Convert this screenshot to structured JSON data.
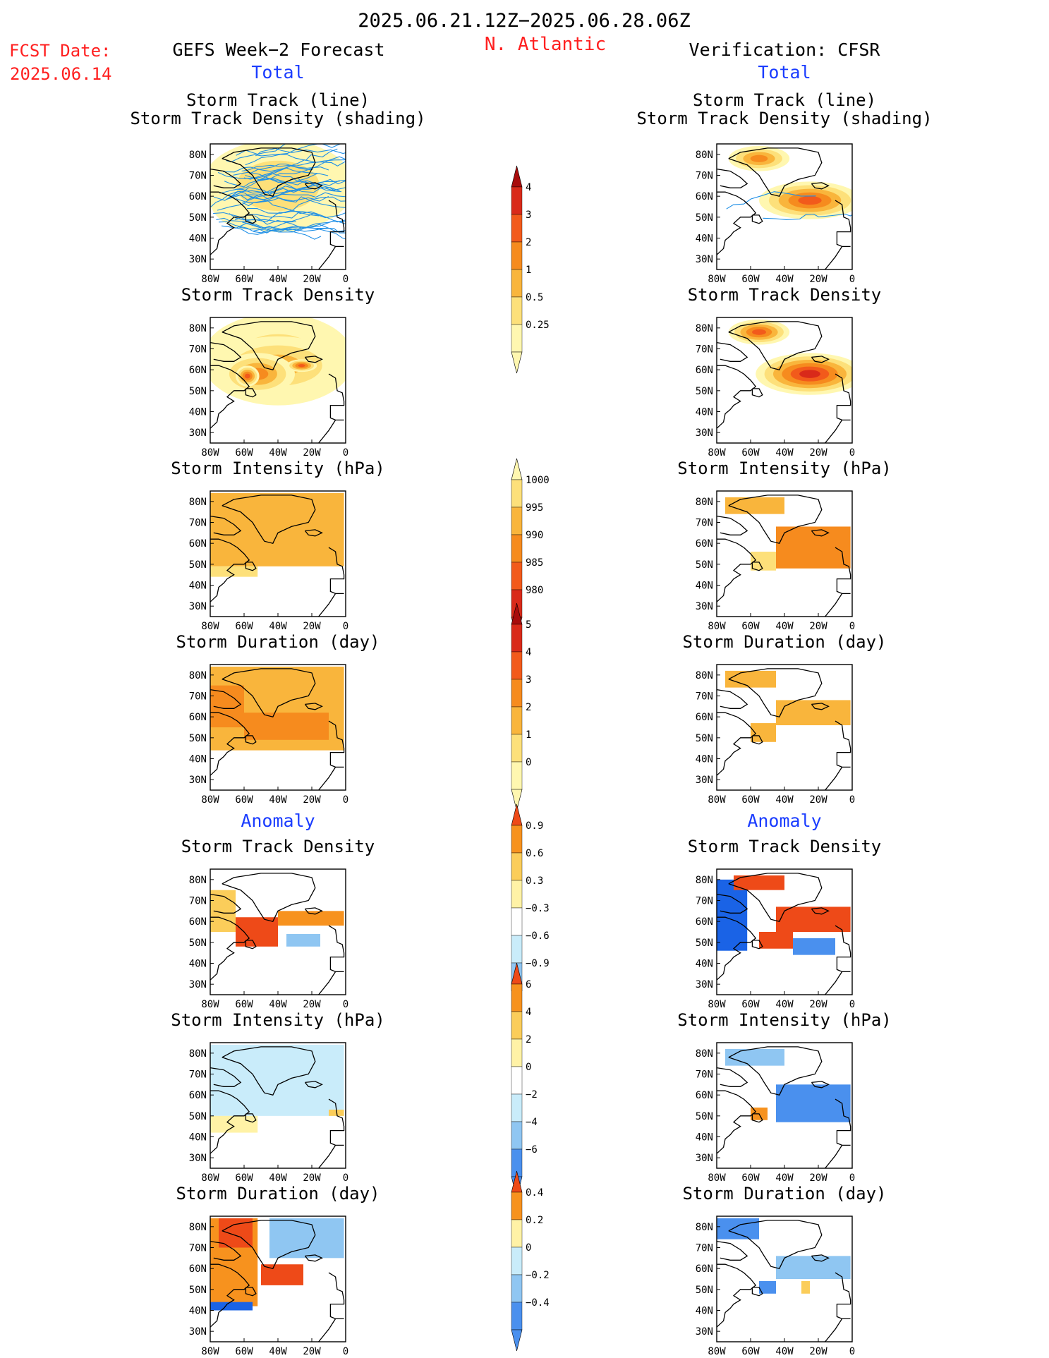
{
  "header": {
    "date_range": "2025.06.21.12Z−2025.06.28.06Z",
    "region": "N. Atlantic",
    "fcst_label": "FCST Date:",
    "fcst_date": "2025.06.14",
    "left_title": "GEFS Week−2 Forecast",
    "right_title": "Verification: CFSR",
    "total_label": "Total",
    "anomaly_label": "Anomaly"
  },
  "colors": {
    "title": "#000000",
    "red_text": "#ff2020",
    "blue_text": "#1a3cff",
    "warm": [
      "#fff7b0",
      "#fde07a",
      "#f9b53c",
      "#f68b1e",
      "#f25a1b",
      "#d92a1a",
      "#a80c0c"
    ],
    "diverging": [
      "#1a63e6",
      "#4a90ee",
      "#8fc6f2",
      "#c9ecfa",
      "#ffffff",
      "#fff2a6",
      "#fbcd5a",
      "#f7921e",
      "#ee4a18",
      "#b5100e"
    ],
    "track_line": "#1f8fe6",
    "land_outline": "#000000"
  },
  "axis": {
    "lon_ticks": [
      "80W",
      "60W",
      "40W",
      "20W",
      "0"
    ],
    "lat_ticks": [
      "80N",
      "70N",
      "60N",
      "50N",
      "40N",
      "30N"
    ]
  },
  "colorbars": [
    {
      "id": "track-density",
      "levels": [
        "4",
        "3",
        "2",
        "1",
        "0.5",
        "0.25"
      ]
    },
    {
      "id": "intensity",
      "levels": [
        "1000",
        "995",
        "990",
        "985",
        "980"
      ]
    },
    {
      "id": "duration",
      "levels": [
        "5",
        "4",
        "3",
        "2",
        "1",
        "0"
      ]
    },
    {
      "id": "anom-density",
      "levels": [
        "0.9",
        "0.6",
        "0.3",
        "−0.3",
        "−0.6",
        "−0.9"
      ]
    },
    {
      "id": "anom-intensity",
      "levels": [
        "6",
        "4",
        "2",
        "0",
        "−2",
        "−4",
        "−6"
      ]
    },
    {
      "id": "anom-duration",
      "levels": [
        "0.4",
        "0.2",
        "0",
        "−0.2",
        "−0.4"
      ]
    }
  ],
  "panels": [
    {
      "id": "fcst-track",
      "col": "left",
      "title": [
        "Storm Track (line)",
        "Storm Track Density (shading)"
      ]
    },
    {
      "id": "fcst-density",
      "col": "left",
      "title": [
        "Storm Track Density"
      ]
    },
    {
      "id": "fcst-intensity",
      "col": "left",
      "title": [
        "Storm Intensity (hPa)"
      ]
    },
    {
      "id": "fcst-duration",
      "col": "left",
      "title": [
        "Storm Duration (day)"
      ]
    },
    {
      "id": "fcst-anom-density",
      "col": "left",
      "title": [
        "Storm Track Density"
      ]
    },
    {
      "id": "fcst-anom-intensity",
      "col": "left",
      "title": [
        "Storm Intensity (hPa)"
      ]
    },
    {
      "id": "fcst-anom-duration",
      "col": "left",
      "title": [
        "Storm Duration (day)"
      ]
    },
    {
      "id": "ver-track",
      "col": "right",
      "title": [
        "Storm Track (line)",
        "Storm Track Density (shading)"
      ]
    },
    {
      "id": "ver-density",
      "col": "right",
      "title": [
        "Storm Track Density"
      ]
    },
    {
      "id": "ver-intensity",
      "col": "right",
      "title": [
        "Storm Intensity (hPa)"
      ]
    },
    {
      "id": "ver-duration",
      "col": "right",
      "title": [
        "Storm Duration (day)"
      ]
    },
    {
      "id": "ver-anom-density",
      "col": "right",
      "title": [
        "Storm Track Density"
      ]
    },
    {
      "id": "ver-anom-intensity",
      "col": "right",
      "title": [
        "Storm Intensity (hPa)"
      ]
    },
    {
      "id": "ver-anom-duration",
      "col": "right",
      "title": [
        "Storm Duration (day)"
      ]
    }
  ],
  "chart_data": {
    "type": "heatmap",
    "domain": {
      "lon": [
        -80,
        0
      ],
      "lat": [
        25,
        85
      ]
    },
    "fields": [
      {
        "panel": "fcst-track",
        "scale": "warm",
        "blobs": [
          {
            "lon": -55,
            "lat": 58,
            "rlon": 25,
            "rlat": 14,
            "level": 4
          },
          {
            "lon": -30,
            "lat": 62,
            "rlon": 32,
            "rlat": 16,
            "level": 3
          },
          {
            "lon": -40,
            "lat": 65,
            "rlon": 45,
            "rlat": 22,
            "level": 1
          }
        ],
        "tracks": 36
      },
      {
        "panel": "fcst-density",
        "scale": "warm",
        "blobs": [
          {
            "lon": -40,
            "lat": 65,
            "rlon": 45,
            "rlat": 22,
            "level": 1
          },
          {
            "lon": -40,
            "lat": 62,
            "rlon": 38,
            "rlat": 14,
            "level": 2
          },
          {
            "lon": -52,
            "lat": 58,
            "rlon": 22,
            "rlat": 10,
            "level": 3
          },
          {
            "lon": -58,
            "lat": 57,
            "rlon": 7,
            "rlat": 5,
            "level": 4
          },
          {
            "lon": -26,
            "lat": 62,
            "rlon": 9,
            "rlat": 3,
            "level": 4
          }
        ]
      },
      {
        "panel": "fcst-intensity",
        "scale": "warm",
        "cells": [
          {
            "lon": [
              -80,
              -1
            ],
            "lat": [
              49,
              84
            ],
            "level": 2
          },
          {
            "lon": [
              -80,
              -52
            ],
            "lat": [
              44,
              49
            ],
            "level": 1
          }
        ]
      },
      {
        "panel": "fcst-duration",
        "scale": "warm",
        "cells": [
          {
            "lon": [
              -80,
              -1
            ],
            "lat": [
              44,
              84
            ],
            "level": 2
          },
          {
            "lon": [
              -60,
              -10
            ],
            "lat": [
              49,
              62
            ],
            "level": 3
          },
          {
            "lon": [
              -80,
              -60
            ],
            "lat": [
              55,
              75
            ],
            "level": 3
          }
        ]
      },
      {
        "panel": "fcst-anom-density",
        "scale": "diverging",
        "cells": [
          {
            "lon": [
              -80,
              -65
            ],
            "lat": [
              55,
              75
            ],
            "level": 6
          },
          {
            "lon": [
              -65,
              -40
            ],
            "lat": [
              48,
              62
            ],
            "level": 8
          },
          {
            "lon": [
              -40,
              -1
            ],
            "lat": [
              58,
              65
            ],
            "level": 7
          },
          {
            "lon": [
              -35,
              -15
            ],
            "lat": [
              48,
              54
            ],
            "level": 2
          }
        ]
      },
      {
        "panel": "fcst-anom-intensity",
        "scale": "diverging",
        "cells": [
          {
            "lon": [
              -80,
              -1
            ],
            "lat": [
              50,
              84
            ],
            "level": 3
          },
          {
            "lon": [
              -80,
              -52
            ],
            "lat": [
              42,
              50
            ],
            "level": 5
          },
          {
            "lon": [
              -10,
              -1
            ],
            "lat": [
              50,
              53
            ],
            "level": 6
          }
        ]
      },
      {
        "panel": "fcst-anom-duration",
        "scale": "diverging",
        "cells": [
          {
            "lon": [
              -80,
              -52
            ],
            "lat": [
              42,
              84
            ],
            "level": 7
          },
          {
            "lon": [
              -75,
              -55
            ],
            "lat": [
              70,
              84
            ],
            "level": 8
          },
          {
            "lon": [
              -45,
              -1
            ],
            "lat": [
              65,
              84
            ],
            "level": 2
          },
          {
            "lon": [
              -50,
              -25
            ],
            "lat": [
              52,
              62
            ],
            "level": 8
          },
          {
            "lon": [
              -80,
              -55
            ],
            "lat": [
              40,
              44
            ],
            "level": 0
          }
        ]
      },
      {
        "panel": "ver-track",
        "scale": "warm",
        "blobs": [
          {
            "lon": -55,
            "lat": 78,
            "rlon": 18,
            "rlat": 6,
            "level": 3
          },
          {
            "lon": -25,
            "lat": 58,
            "rlon": 30,
            "rlat": 9,
            "level": 4
          }
        ],
        "tracks": 2
      },
      {
        "panel": "ver-density",
        "scale": "warm",
        "blobs": [
          {
            "lon": -55,
            "lat": 78,
            "rlon": 18,
            "rlat": 6,
            "level": 4
          },
          {
            "lon": -25,
            "lat": 58,
            "rlon": 32,
            "rlat": 10,
            "level": 5
          }
        ]
      },
      {
        "panel": "ver-intensity",
        "scale": "warm",
        "cells": [
          {
            "lon": [
              -75,
              -40
            ],
            "lat": [
              74,
              82
            ],
            "level": 2
          },
          {
            "lon": [
              -45,
              -1
            ],
            "lat": [
              48,
              68
            ],
            "level": 3
          },
          {
            "lon": [
              -60,
              -45
            ],
            "lat": [
              47,
              56
            ],
            "level": 1
          }
        ]
      },
      {
        "panel": "ver-duration",
        "scale": "warm",
        "cells": [
          {
            "lon": [
              -75,
              -45
            ],
            "lat": [
              74,
              82
            ],
            "level": 2
          },
          {
            "lon": [
              -45,
              -1
            ],
            "lat": [
              56,
              68
            ],
            "level": 2
          },
          {
            "lon": [
              -60,
              -45
            ],
            "lat": [
              48,
              57
            ],
            "level": 2
          }
        ]
      },
      {
        "panel": "ver-anom-density",
        "scale": "diverging",
        "cells": [
          {
            "lon": [
              -80,
              -62
            ],
            "lat": [
              46,
              80
            ],
            "level": 0
          },
          {
            "lon": [
              -70,
              -40
            ],
            "lat": [
              75,
              82
            ],
            "level": 8
          },
          {
            "lon": [
              -45,
              -1
            ],
            "lat": [
              55,
              67
            ],
            "level": 8
          },
          {
            "lon": [
              -55,
              -35
            ],
            "lat": [
              47,
              55
            ],
            "level": 8
          },
          {
            "lon": [
              -35,
              -10
            ],
            "lat": [
              44,
              52
            ],
            "level": 1
          }
        ]
      },
      {
        "panel": "ver-anom-intensity",
        "scale": "diverging",
        "cells": [
          {
            "lon": [
              -75,
              -40
            ],
            "lat": [
              74,
              82
            ],
            "level": 2
          },
          {
            "lon": [
              -45,
              -1
            ],
            "lat": [
              47,
              65
            ],
            "level": 1
          },
          {
            "lon": [
              -60,
              -50
            ],
            "lat": [
              48,
              54
            ],
            "level": 7
          }
        ]
      },
      {
        "panel": "ver-anom-duration",
        "scale": "diverging",
        "cells": [
          {
            "lon": [
              -80,
              -55
            ],
            "lat": [
              74,
              84
            ],
            "level": 1
          },
          {
            "lon": [
              -45,
              -1
            ],
            "lat": [
              55,
              66
            ],
            "level": 2
          },
          {
            "lon": [
              -55,
              -45
            ],
            "lat": [
              48,
              54
            ],
            "level": 1
          },
          {
            "lon": [
              -30,
              -25
            ],
            "lat": [
              48,
              54
            ],
            "level": 6
          }
        ]
      }
    ]
  }
}
